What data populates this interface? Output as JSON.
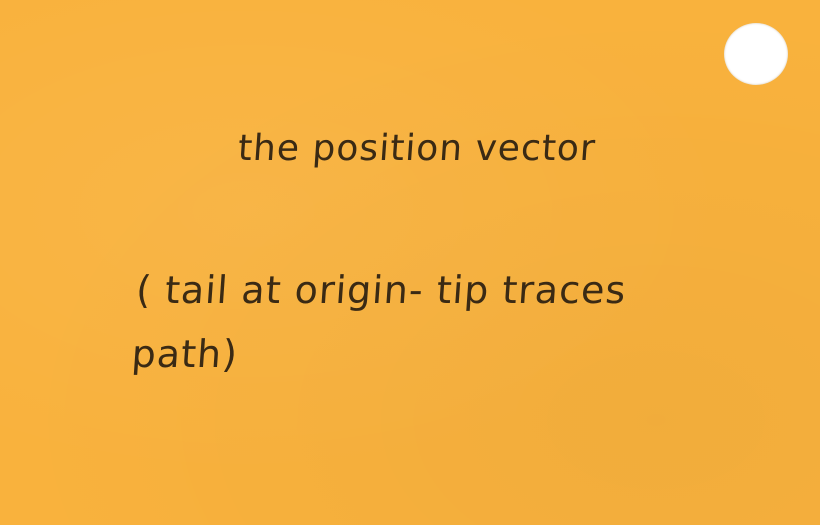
{
  "card": {
    "background_color": "#f9b23d",
    "ink_color": "#3a2a14",
    "term": "the position vector",
    "definition_lines": [
      "( tail at origin- tip traces",
      "path)"
    ]
  }
}
